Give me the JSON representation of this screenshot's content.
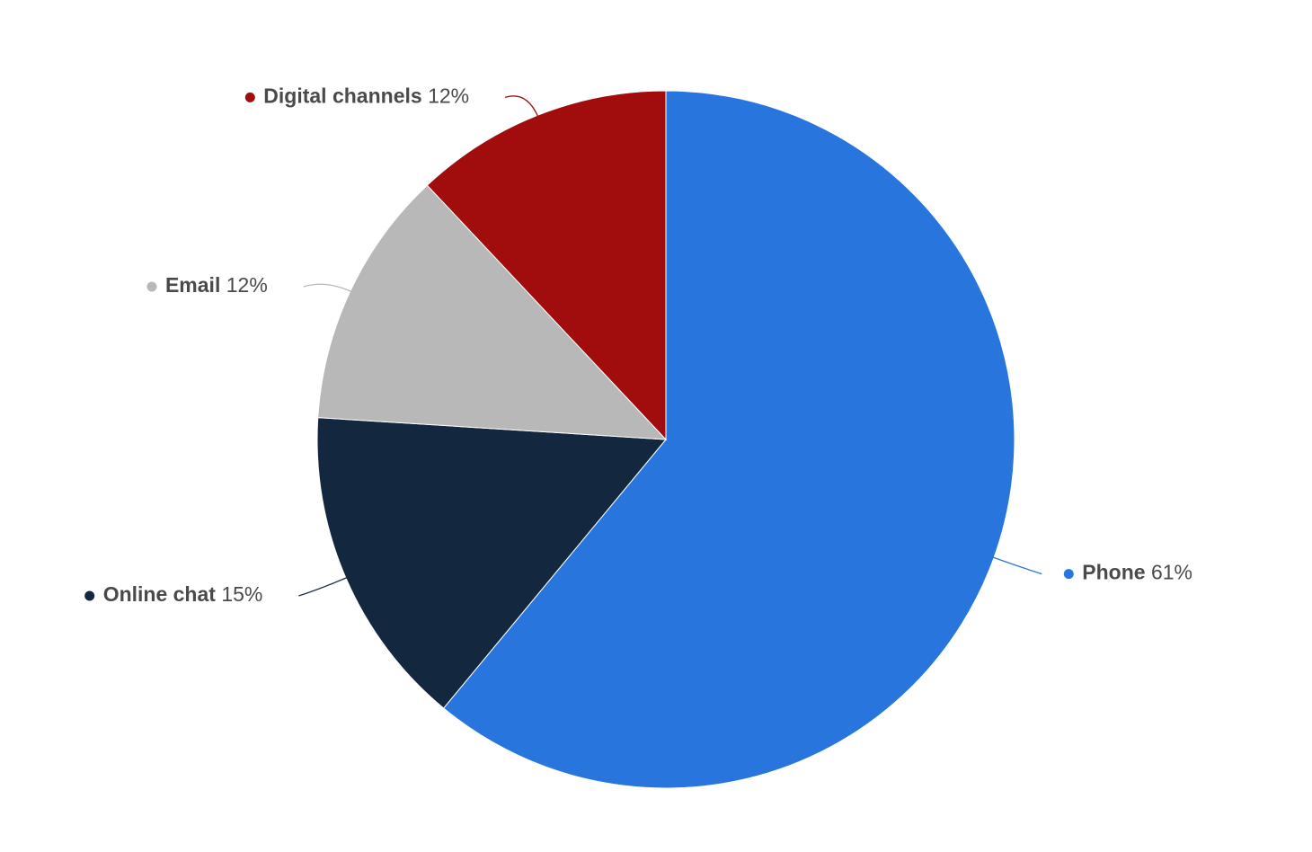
{
  "chart_data": {
    "type": "pie",
    "categories": [
      "Phone",
      "Online chat",
      "Email",
      "Digital channels"
    ],
    "values": [
      61,
      15,
      12,
      12
    ],
    "value_labels": [
      "61%",
      "15%",
      "12%",
      "12%"
    ],
    "colors": [
      "#2876dd",
      "#13283f",
      "#b8b8b8",
      "#a10d0d"
    ]
  }
}
